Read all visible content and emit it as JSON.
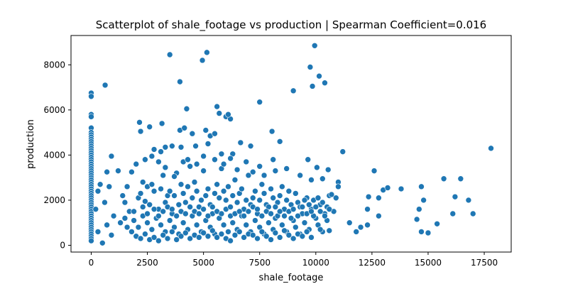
{
  "chart_data": {
    "type": "scatter",
    "title": "Scatterplot of shale_footage vs production | Spearman Coefficient=0.016",
    "xlabel": "shale_footage",
    "ylabel": "production",
    "xlim": [
      -900,
      18700
    ],
    "ylim": [
      -300,
      9300
    ],
    "xticks": [
      0,
      2500,
      5000,
      7500,
      10000,
      12500,
      15000,
      17500
    ],
    "xtick_labels": [
      "0",
      "2500",
      "5000",
      "7500",
      "10000",
      "12500",
      "15000",
      "17500"
    ],
    "yticks": [
      0,
      2000,
      4000,
      6000,
      8000
    ],
    "ytick_labels": [
      "0",
      "2000",
      "4000",
      "6000",
      "8000"
    ],
    "grid": false,
    "legend": "none",
    "marker_color": "#1f77b4",
    "points": [
      [
        0,
        6750
      ],
      [
        0,
        6600
      ],
      [
        0,
        5800
      ],
      [
        0,
        5700
      ],
      [
        0,
        5200
      ],
      [
        0,
        5000
      ],
      [
        0,
        4900
      ],
      [
        0,
        4800
      ],
      [
        0,
        4700
      ],
      [
        0,
        4600
      ],
      [
        0,
        4500
      ],
      [
        0,
        4400
      ],
      [
        0,
        4300
      ],
      [
        0,
        4200
      ],
      [
        0,
        4100
      ],
      [
        0,
        4000
      ],
      [
        0,
        3900
      ],
      [
        0,
        3800
      ],
      [
        0,
        3700
      ],
      [
        0,
        3600
      ],
      [
        0,
        3500
      ],
      [
        0,
        3400
      ],
      [
        0,
        3300
      ],
      [
        0,
        3200
      ],
      [
        0,
        3100
      ],
      [
        0,
        3000
      ],
      [
        0,
        2900
      ],
      [
        0,
        2800
      ],
      [
        0,
        2700
      ],
      [
        0,
        2600
      ],
      [
        0,
        2500
      ],
      [
        0,
        2400
      ],
      [
        0,
        2300
      ],
      [
        0,
        2200
      ],
      [
        0,
        2100
      ],
      [
        0,
        2000
      ],
      [
        0,
        1900
      ],
      [
        0,
        1800
      ],
      [
        0,
        1700
      ],
      [
        0,
        1600
      ],
      [
        0,
        1500
      ],
      [
        0,
        1400
      ],
      [
        0,
        1300
      ],
      [
        0,
        1200
      ],
      [
        0,
        1100
      ],
      [
        0,
        1000
      ],
      [
        0,
        900
      ],
      [
        0,
        800
      ],
      [
        0,
        700
      ],
      [
        0,
        600
      ],
      [
        0,
        500
      ],
      [
        0,
        400
      ],
      [
        0,
        300
      ],
      [
        0,
        200
      ],
      [
        620,
        7100
      ],
      [
        3500,
        8450
      ],
      [
        4950,
        8200
      ],
      [
        5150,
        8550
      ],
      [
        9950,
        8850
      ],
      [
        9750,
        7900
      ],
      [
        10150,
        7500
      ],
      [
        10400,
        7200
      ],
      [
        9850,
        7050
      ],
      [
        3950,
        7250
      ],
      [
        9000,
        6850
      ],
      [
        7500,
        6350
      ],
      [
        4250,
        6050
      ],
      [
        5600,
        6150
      ],
      [
        5700,
        5850
      ],
      [
        6000,
        5700
      ],
      [
        6200,
        5600
      ],
      [
        6100,
        5800
      ],
      [
        2150,
        5450
      ],
      [
        2600,
        5250
      ],
      [
        2200,
        5050
      ],
      [
        3150,
        5400
      ],
      [
        3950,
        5100
      ],
      [
        4150,
        5200
      ],
      [
        4500,
        4950
      ],
      [
        5100,
        5100
      ],
      [
        5300,
        4850
      ],
      [
        5500,
        4950
      ],
      [
        8050,
        5050
      ],
      [
        8400,
        4600
      ],
      [
        6650,
        4550
      ],
      [
        5200,
        4500
      ],
      [
        3300,
        4350
      ],
      [
        3600,
        4400
      ],
      [
        4000,
        4350
      ],
      [
        4650,
        4400
      ],
      [
        2800,
        4250
      ],
      [
        3100,
        4150
      ],
      [
        11200,
        4150
      ],
      [
        17800,
        4300
      ],
      [
        5800,
        4050
      ],
      [
        6300,
        4050
      ],
      [
        7100,
        4400
      ],
      [
        7500,
        3500
      ],
      [
        8100,
        3800
      ],
      [
        9650,
        3800
      ],
      [
        10050,
        3450
      ],
      [
        10550,
        3350
      ],
      [
        11000,
        2800
      ],
      [
        12600,
        3300
      ],
      [
        13000,
        2450
      ],
      [
        13200,
        2550
      ],
      [
        13800,
        2500
      ],
      [
        12350,
        2150
      ],
      [
        12800,
        2100
      ],
      [
        14700,
        2600
      ],
      [
        15700,
        2950
      ],
      [
        16450,
        2950
      ],
      [
        16200,
        2150
      ],
      [
        16800,
        2000
      ],
      [
        14800,
        2000
      ],
      [
        14600,
        1600
      ],
      [
        14500,
        1150
      ],
      [
        14700,
        600
      ],
      [
        15000,
        550
      ],
      [
        15400,
        950
      ],
      [
        16100,
        1400
      ],
      [
        17000,
        1400
      ],
      [
        12300,
        1600
      ],
      [
        12000,
        800
      ],
      [
        12300,
        900
      ],
      [
        11800,
        600
      ],
      [
        11500,
        1000
      ],
      [
        12800,
        1300
      ],
      [
        10600,
        650
      ],
      [
        900,
        3950
      ],
      [
        700,
        3250
      ],
      [
        1200,
        3300
      ],
      [
        400,
        2700
      ],
      [
        800,
        2600
      ],
      [
        300,
        2400
      ],
      [
        600,
        1900
      ],
      [
        200,
        1600
      ],
      [
        1000,
        1300
      ],
      [
        700,
        900
      ],
      [
        300,
        600
      ],
      [
        500,
        100
      ],
      [
        900,
        450
      ],
      [
        1800,
        3250
      ],
      [
        2100,
        2100
      ],
      [
        2300,
        2800
      ],
      [
        2500,
        2600
      ],
      [
        2600,
        1800
      ],
      [
        2800,
        2400
      ],
      [
        3000,
        1600
      ],
      [
        3200,
        3100
      ],
      [
        3400,
        2200
      ],
      [
        3600,
        1400
      ],
      [
        3800,
        3200
      ],
      [
        4000,
        2700
      ],
      [
        4200,
        1900
      ],
      [
        4400,
        3500
      ],
      [
        4600,
        2800
      ],
      [
        4800,
        1700
      ],
      [
        5000,
        3300
      ],
      [
        5200,
        2500
      ],
      [
        5400,
        1400
      ],
      [
        5600,
        2700
      ],
      [
        5800,
        3400
      ],
      [
        6000,
        2000
      ],
      [
        6200,
        1300
      ],
      [
        6400,
        2900
      ],
      [
        6600,
        2300
      ],
      [
        6800,
        1600
      ],
      [
        7000,
        3100
      ],
      [
        7200,
        2100
      ],
      [
        7400,
        1400
      ],
      [
        7600,
        2700
      ],
      [
        7800,
        1800
      ],
      [
        8000,
        2500
      ],
      [
        8200,
        1200
      ],
      [
        8400,
        2200
      ],
      [
        8600,
        1600
      ],
      [
        8800,
        2400
      ],
      [
        9000,
        1100
      ],
      [
        9200,
        1900
      ],
      [
        9400,
        1400
      ],
      [
        9600,
        2100
      ],
      [
        9800,
        1600
      ],
      [
        10000,
        1200
      ],
      [
        10200,
        1800
      ],
      [
        10400,
        1400
      ],
      [
        10600,
        2200
      ],
      [
        10800,
        1500
      ],
      [
        11000,
        2600
      ],
      [
        1500,
        1900
      ],
      [
        1700,
        1500
      ],
      [
        1900,
        1100
      ],
      [
        2100,
        800
      ],
      [
        2300,
        1300
      ],
      [
        2500,
        1000
      ],
      [
        2700,
        700
      ],
      [
        2900,
        1200
      ],
      [
        3100,
        900
      ],
      [
        3300,
        600
      ],
      [
        3500,
        1100
      ],
      [
        3700,
        800
      ],
      [
        3900,
        500
      ],
      [
        4100,
        1000
      ],
      [
        4300,
        700
      ],
      [
        4500,
        1300
      ],
      [
        4700,
        900
      ],
      [
        4900,
        600
      ],
      [
        5100,
        1100
      ],
      [
        5300,
        800
      ],
      [
        5500,
        500
      ],
      [
        5700,
        1200
      ],
      [
        5900,
        900
      ],
      [
        6100,
        600
      ],
      [
        6300,
        1000
      ],
      [
        6500,
        700
      ],
      [
        6700,
        1300
      ],
      [
        6900,
        900
      ],
      [
        7100,
        600
      ],
      [
        7300,
        1100
      ],
      [
        7500,
        800
      ],
      [
        7700,
        500
      ],
      [
        7900,
        1000
      ],
      [
        8100,
        700
      ],
      [
        8300,
        1300
      ],
      [
        8500,
        900
      ],
      [
        8700,
        600
      ],
      [
        8900,
        1200
      ],
      [
        9100,
        800
      ],
      [
        9300,
        500
      ],
      [
        9500,
        1000
      ],
      [
        9700,
        700
      ],
      [
        9900,
        1300
      ],
      [
        10100,
        900
      ],
      [
        10300,
        600
      ],
      [
        10500,
        1100
      ],
      [
        1300,
        1000
      ],
      [
        1600,
        800
      ],
      [
        1800,
        600
      ],
      [
        2000,
        400
      ],
      [
        2200,
        300
      ],
      [
        2400,
        500
      ],
      [
        2600,
        250
      ],
      [
        2800,
        350
      ],
      [
        3000,
        200
      ],
      [
        3200,
        450
      ],
      [
        3400,
        300
      ],
      [
        3600,
        600
      ],
      [
        3800,
        250
      ],
      [
        4000,
        400
      ],
      [
        4200,
        550
      ],
      [
        4400,
        300
      ],
      [
        4600,
        450
      ],
      [
        4800,
        350
      ],
      [
        5000,
        550
      ],
      [
        5200,
        400
      ],
      [
        5400,
        650
      ],
      [
        5600,
        350
      ],
      [
        5800,
        500
      ],
      [
        6000,
        300
      ],
      [
        6200,
        200
      ],
      [
        6400,
        450
      ],
      [
        6600,
        600
      ],
      [
        6800,
        350
      ],
      [
        7000,
        500
      ],
      [
        7200,
        450
      ],
      [
        7400,
        300
      ],
      [
        7600,
        600
      ],
      [
        7800,
        400
      ],
      [
        8000,
        250
      ],
      [
        8200,
        550
      ],
      [
        8400,
        350
      ],
      [
        8600,
        650
      ],
      [
        8800,
        450
      ],
      [
        9000,
        300
      ],
      [
        9200,
        500
      ],
      [
        9400,
        400
      ],
      [
        9600,
        600
      ],
      [
        9800,
        350
      ],
      [
        10200,
        700
      ],
      [
        2000,
        3600
      ],
      [
        2400,
        3800
      ],
      [
        2700,
        3950
      ],
      [
        3000,
        3700
      ],
      [
        3300,
        3450
      ],
      [
        3700,
        3050
      ],
      [
        4100,
        3700
      ],
      [
        4300,
        3800
      ],
      [
        4700,
        3600
      ],
      [
        5000,
        3950
      ],
      [
        5500,
        3800
      ],
      [
        5900,
        3600
      ],
      [
        6200,
        3850
      ],
      [
        6500,
        3350
      ],
      [
        6900,
        3700
      ],
      [
        7200,
        3250
      ],
      [
        7700,
        3100
      ],
      [
        8200,
        3300
      ],
      [
        8700,
        3400
      ],
      [
        9300,
        3100
      ],
      [
        9800,
        2900
      ],
      [
        10300,
        2950
      ],
      [
        10700,
        2250
      ],
      [
        10900,
        2100
      ],
      [
        1400,
        2200
      ],
      [
        1600,
        2600
      ],
      [
        2200,
        2300
      ],
      [
        2400,
        1950
      ],
      [
        2700,
        2700
      ],
      [
        3100,
        2500
      ],
      [
        3300,
        1900
      ],
      [
        3500,
        2400
      ],
      [
        3700,
        2200
      ],
      [
        3900,
        1800
      ],
      [
        4100,
        2300
      ],
      [
        4300,
        2600
      ],
      [
        4500,
        2100
      ],
      [
        4700,
        2400
      ],
      [
        4900,
        2000
      ],
      [
        5100,
        2200
      ],
      [
        5300,
        1800
      ],
      [
        5500,
        2300
      ],
      [
        5700,
        2100
      ],
      [
        5900,
        2400
      ],
      [
        6100,
        2600
      ],
      [
        6300,
        2200
      ],
      [
        6500,
        1900
      ],
      [
        6700,
        2500
      ],
      [
        6900,
        2000
      ],
      [
        7100,
        1800
      ],
      [
        7300,
        2400
      ],
      [
        7500,
        2000
      ],
      [
        7700,
        2300
      ],
      [
        7900,
        1700
      ],
      [
        8100,
        2100
      ],
      [
        8300,
        1900
      ],
      [
        8500,
        2600
      ],
      [
        8700,
        2000
      ],
      [
        8900,
        1800
      ],
      [
        9100,
        2300
      ],
      [
        9300,
        1700
      ],
      [
        9500,
        2000
      ],
      [
        9700,
        1800
      ],
      [
        9900,
        2000
      ],
      [
        10100,
        2100
      ],
      [
        10300,
        1900
      ],
      [
        10500,
        1700
      ],
      [
        1500,
        1200
      ],
      [
        1900,
        1500
      ],
      [
        2300,
        1700
      ],
      [
        2500,
        1400
      ],
      [
        2800,
        1600
      ],
      [
        3000,
        1300
      ],
      [
        3200,
        1500
      ],
      [
        3400,
        1700
      ],
      [
        3600,
        1600
      ],
      [
        3800,
        1300
      ],
      [
        4000,
        1500
      ],
      [
        4200,
        1400
      ],
      [
        4400,
        1700
      ],
      [
        4600,
        1500
      ],
      [
        4800,
        1400
      ],
      [
        5000,
        1600
      ],
      [
        5200,
        1300
      ],
      [
        5400,
        1700
      ],
      [
        5600,
        1500
      ],
      [
        5800,
        1400
      ],
      [
        6000,
        1600
      ],
      [
        6200,
        1700
      ],
      [
        6400,
        1400
      ],
      [
        6600,
        1500
      ],
      [
        6800,
        1300
      ],
      [
        7000,
        1500
      ],
      [
        7200,
        1700
      ],
      [
        7400,
        1600
      ],
      [
        7600,
        1300
      ],
      [
        7800,
        1500
      ],
      [
        8000,
        1400
      ],
      [
        8200,
        1700
      ],
      [
        8400,
        1500
      ],
      [
        8600,
        1300
      ],
      [
        8800,
        1500
      ],
      [
        9000,
        1600
      ],
      [
        9200,
        1300
      ],
      [
        9400,
        1700
      ],
      [
        9600,
        1400
      ],
      [
        9800,
        1500
      ],
      [
        10000,
        1700
      ],
      [
        10200,
        1500
      ],
      [
        10400,
        1300
      ],
      [
        10600,
        1600
      ]
    ]
  }
}
